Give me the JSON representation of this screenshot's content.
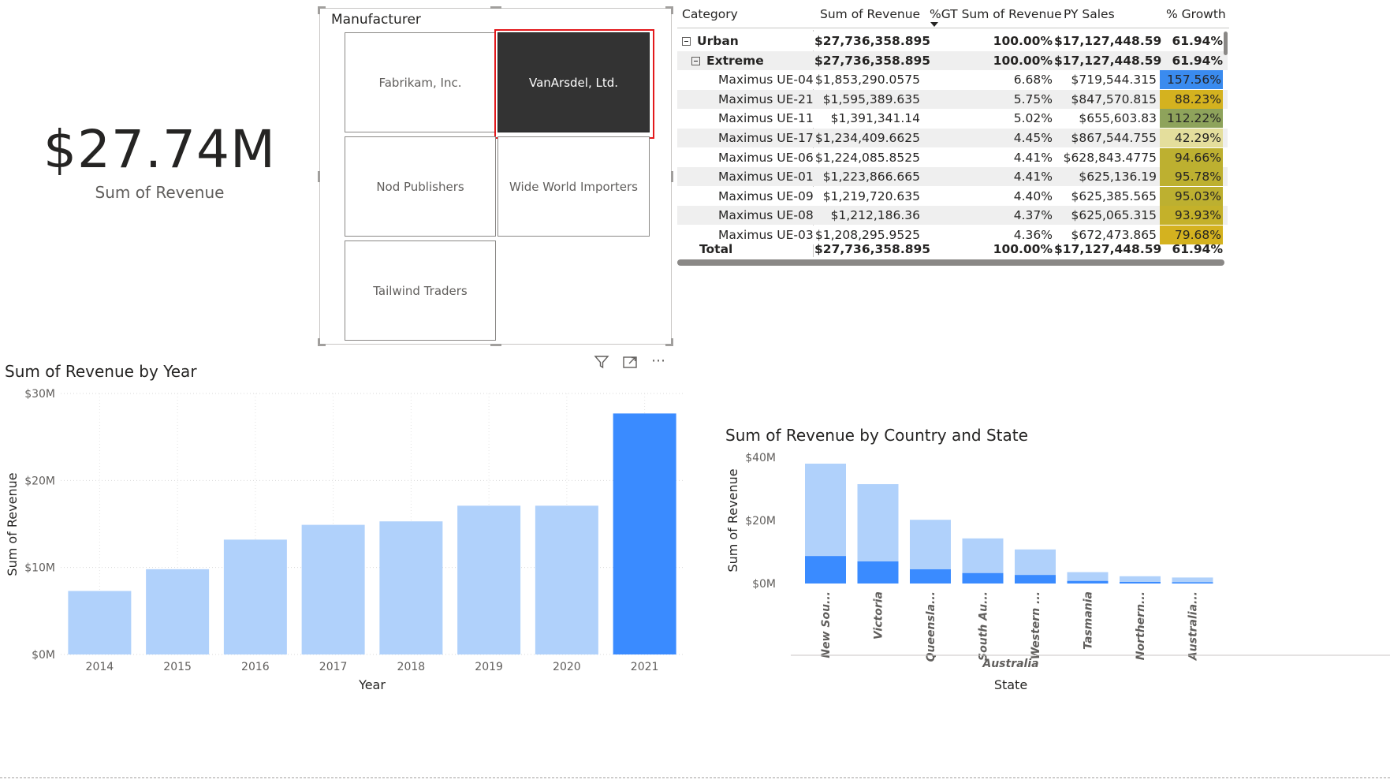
{
  "kpi": {
    "value": "$27.74M",
    "label": "Sum of Revenue"
  },
  "slicer": {
    "title": "Manufacturer",
    "tiles": [
      {
        "label": "Fabrikam, Inc.",
        "selected": false
      },
      {
        "label": "VanArsdel, Ltd.",
        "selected": true
      },
      {
        "label": "Nod Publishers",
        "selected": false
      },
      {
        "label": "Wide World Importers",
        "selected": false
      },
      {
        "label": "Tailwind Traders",
        "selected": false
      }
    ],
    "header_icons": [
      "filter-icon",
      "focus-mode-icon",
      "more-options-icon"
    ],
    "more_glyph": "⋯"
  },
  "matrix": {
    "headers": [
      "Category",
      "Sum of Revenue",
      "%GT Sum of Revenue",
      "PY Sales",
      "% Growth"
    ],
    "sort_column": "%GT Sum of Revenue",
    "rows": [
      {
        "level": 0,
        "label": "Urban",
        "revenue": "$27,736,358.895",
        "gt": "100.00%",
        "py": "$17,127,448.59",
        "growth": "61.94%",
        "bold": true,
        "expander": true
      },
      {
        "level": 1,
        "label": "Extreme",
        "revenue": "$27,736,358.895",
        "gt": "100.00%",
        "py": "$17,127,448.59",
        "growth": "61.94%",
        "bold": true,
        "expander": true
      },
      {
        "level": 2,
        "label": "Maximus UE-04",
        "revenue": "$1,853,290.0575",
        "gt": "6.68%",
        "py": "$719,544.315",
        "growth": "157.56%",
        "growth_color": "#3a8bef"
      },
      {
        "level": 2,
        "label": "Maximus UE-21",
        "revenue": "$1,595,389.635",
        "gt": "5.75%",
        "py": "$847,570.815",
        "growth": "88.23%",
        "growth_color": "#d4b21f"
      },
      {
        "level": 2,
        "label": "Maximus UE-11",
        "revenue": "$1,391,341.14",
        "gt": "5.02%",
        "py": "$655,603.83",
        "growth": "112.22%",
        "growth_color": "#8ea35b"
      },
      {
        "level": 2,
        "label": "Maximus UE-17",
        "revenue": "$1,234,409.6625",
        "gt": "4.45%",
        "py": "$867,544.755",
        "growth": "42.29%",
        "growth_color": "#e4de9c"
      },
      {
        "level": 2,
        "label": "Maximus UE-06",
        "revenue": "$1,224,085.8525",
        "gt": "4.41%",
        "py": "$628,843.4775",
        "growth": "94.66%",
        "growth_color": "#bdb030"
      },
      {
        "level": 2,
        "label": "Maximus UE-01",
        "revenue": "$1,223,866.665",
        "gt": "4.41%",
        "py": "$625,136.19",
        "growth": "95.78%",
        "growth_color": "#bdb030"
      },
      {
        "level": 2,
        "label": "Maximus UE-09",
        "revenue": "$1,219,720.635",
        "gt": "4.40%",
        "py": "$625,385.565",
        "growth": "95.03%",
        "growth_color": "#bdb030"
      },
      {
        "level": 2,
        "label": "Maximus UE-08",
        "revenue": "$1,212,186.36",
        "gt": "4.37%",
        "py": "$625,065.315",
        "growth": "93.93%",
        "growth_color": "#c4b12a"
      },
      {
        "level": 2,
        "label": "Maximus UE-03",
        "revenue": "$1,208,295.9525",
        "gt": "4.36%",
        "py": "$672,473.865",
        "growth": "79.68%",
        "growth_color": "#d4b21f"
      }
    ],
    "total": {
      "label": "Total",
      "revenue": "$27,736,358.895",
      "gt": "100.00%",
      "py": "$17,127,448.59",
      "growth": "61.94%"
    }
  },
  "chart_data": [
    {
      "type": "bar",
      "title": "Sum of Revenue by Year",
      "xlabel": "Year",
      "ylabel": "Sum of Revenue",
      "categories": [
        "2014",
        "2015",
        "2016",
        "2017",
        "2018",
        "2019",
        "2020",
        "2021"
      ],
      "values": [
        7.3,
        9.8,
        13.2,
        14.9,
        15.3,
        17.1,
        17.1,
        27.7
      ],
      "highlighted": [
        false,
        false,
        false,
        false,
        false,
        false,
        false,
        true
      ],
      "ylim": [
        0,
        30
      ],
      "ticks": [
        "$0M",
        "$10M",
        "$20M",
        "$30M"
      ],
      "tick_values": [
        0,
        10,
        20,
        30
      ],
      "colors": {
        "base": "#b0d1fb",
        "highlight": "#3a8bff"
      },
      "grid": true
    },
    {
      "type": "bar",
      "title": "Sum of Revenue by Country and State",
      "xlabel": "State",
      "ylabel": "Sum of Revenue",
      "group_label": "Australia",
      "categories": [
        "New Sou...",
        "Victoria",
        "Queensla...",
        "South Au...",
        "Western ...",
        "Tasmania",
        "Northern...",
        "Australia..."
      ],
      "series": [
        {
          "values": [
            38,
            31.5,
            20.2,
            14.3,
            10.8,
            3.6,
            2.3,
            1.9
          ]
        },
        {
          "values": [
            8.7,
            7.0,
            4.5,
            3.3,
            2.7,
            0.8,
            0.5,
            0.4
          ]
        }
      ],
      "ylim": [
        0,
        40
      ],
      "ticks": [
        "$0M",
        "$20M",
        "$40M"
      ],
      "tick_values": [
        0,
        20,
        40
      ],
      "colors": {
        "total": "#b0d1fb",
        "highlight": "#3a8bff"
      },
      "grid": false
    }
  ]
}
